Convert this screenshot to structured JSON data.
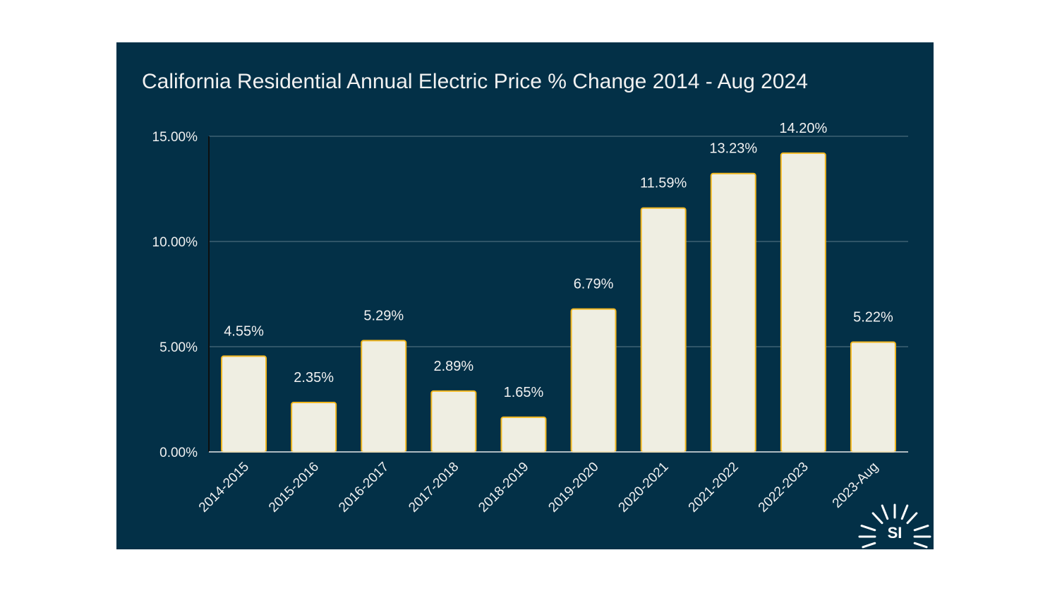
{
  "chart_data": {
    "type": "bar",
    "title": "California Residential Annual Electric Price % Change 2014 - Aug 2024",
    "categories": [
      "2014-2015",
      "2015-2016",
      "2016-2017",
      "2017-2018",
      "2018-2019",
      "2019-2020",
      "2020-2021",
      "2021-2022",
      "2022-2023",
      "2023-Aug"
    ],
    "values": [
      4.55,
      2.35,
      5.29,
      2.89,
      1.65,
      6.79,
      11.59,
      13.23,
      14.2,
      5.22
    ],
    "data_labels": [
      "4.55%",
      "2.35%",
      "5.29%",
      "2.89%",
      "1.65%",
      "6.79%",
      "11.59%",
      "13.23%",
      "14.20%",
      "5.22%"
    ],
    "y_ticks": [
      0,
      5,
      10,
      15
    ],
    "y_tick_labels": [
      "0.00%",
      "5.00%",
      "10.00%",
      "15.00%"
    ],
    "ylim": [
      0,
      15
    ],
    "xlabel": "",
    "ylabel": "",
    "grid": true,
    "legend": "none",
    "colors": {
      "background": "#033047",
      "bar_fill": "#efeee2",
      "bar_stroke": "#f2b720",
      "text": "#f1f1f1",
      "gridline": "#5b7a8a",
      "page": "#ffffff"
    }
  },
  "logo": {
    "icon": "sun-rays-icon",
    "text": "SI"
  }
}
